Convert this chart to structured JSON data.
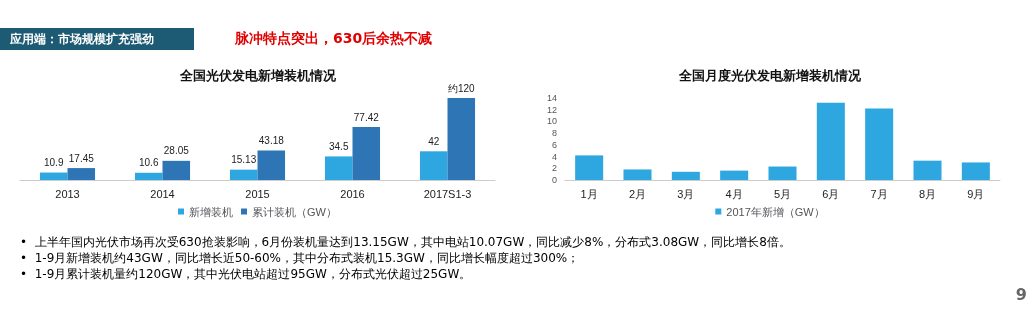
{
  "chart_data": [
    {
      "type": "bar",
      "title": "全国光伏发电新增装机情况",
      "categories": [
        "2013",
        "2014",
        "2015",
        "2016",
        "2017S1-3"
      ],
      "tick_labels": "x",
      "legend": "bottom",
      "series": [
        {
          "name": "新增装机",
          "color": "#2ea7e0",
          "values": [
            10.9,
            10.6,
            15.13,
            34.5,
            42
          ],
          "value_labels": [
            "10.9",
            "10.6",
            "15.13",
            "34.5",
            "42"
          ]
        },
        {
          "name": "累计装机（GW）",
          "color": "#2e75b6",
          "values": [
            17.45,
            28.05,
            43.18,
            77.42,
            120
          ],
          "value_labels": [
            "17.45",
            "28.05",
            "43.18",
            "77.42",
            "约120"
          ]
        }
      ]
    },
    {
      "type": "bar",
      "title": "全国月度光伏发电新增装机情况",
      "categories": [
        "1月",
        "2月",
        "3月",
        "4月",
        "5月",
        "6月",
        "7月",
        "8月",
        "9月"
      ],
      "ylim": [
        0,
        14
      ],
      "yticks": [
        0,
        2,
        4,
        6,
        8,
        10,
        12,
        14
      ],
      "legend": "bottom",
      "series": [
        {
          "name": "2017年新增（GW）",
          "color": "#2ea7e0",
          "values": [
            4.2,
            1.8,
            1.4,
            1.6,
            2.3,
            13.2,
            12.2,
            3.3,
            3.0
          ]
        }
      ]
    },
    {
      "type": "other",
      "title": "应用端：市场规模扩充强劲",
      "subtitle": "脉冲特点突出，630后余热不减",
      "annotations": [
        "•  上半年国内光伏市场再次受630抢装影响，6月份装机量达到13.15GW，其中电站10.07GW，同比减少8%，分布式3.08GW，同比增长8倍。",
        "•  1-9月新增装机约43GW，同比增长近50-60%，其中分布式装机15.3GW，同比增长幅度超过300%；",
        "•  1-9月累计装机量约120GW，其中光伏电站超过95GW，分布式光伏超过25GW。",
        "9"
      ]
    }
  ]
}
